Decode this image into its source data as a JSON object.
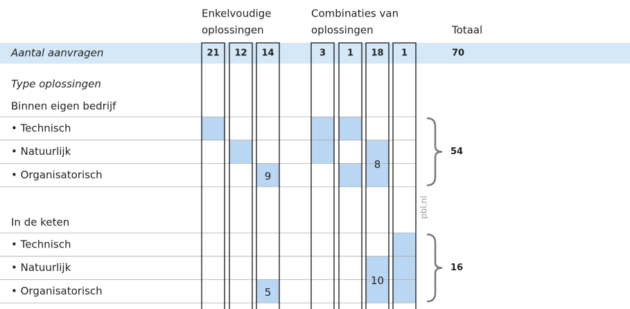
{
  "headers": {
    "single": [
      "Enkelvoudige",
      "oplossingen"
    ],
    "combined": [
      "Combinaties van",
      "oplossingen"
    ],
    "total": "Totaal"
  },
  "count_row": {
    "label": "Aantal aanvragen",
    "counts": [
      21,
      12,
      14,
      3,
      1,
      18,
      1
    ],
    "total": 70
  },
  "type_heading": "Type oplossingen",
  "sections": [
    {
      "title": "Binnen eigen bedrijf",
      "rows": [
        "• Technisch",
        "• Natuurlijk",
        "• Organisatorisch"
      ],
      "total": 54,
      "cell_values": [
        9,
        8
      ]
    },
    {
      "title": "In de keten",
      "rows": [
        "• Technisch",
        "• Natuurlijk",
        "• Organisatorisch"
      ],
      "total": 16,
      "cell_values": [
        5,
        10
      ]
    }
  ],
  "source": "pbl.nl"
}
